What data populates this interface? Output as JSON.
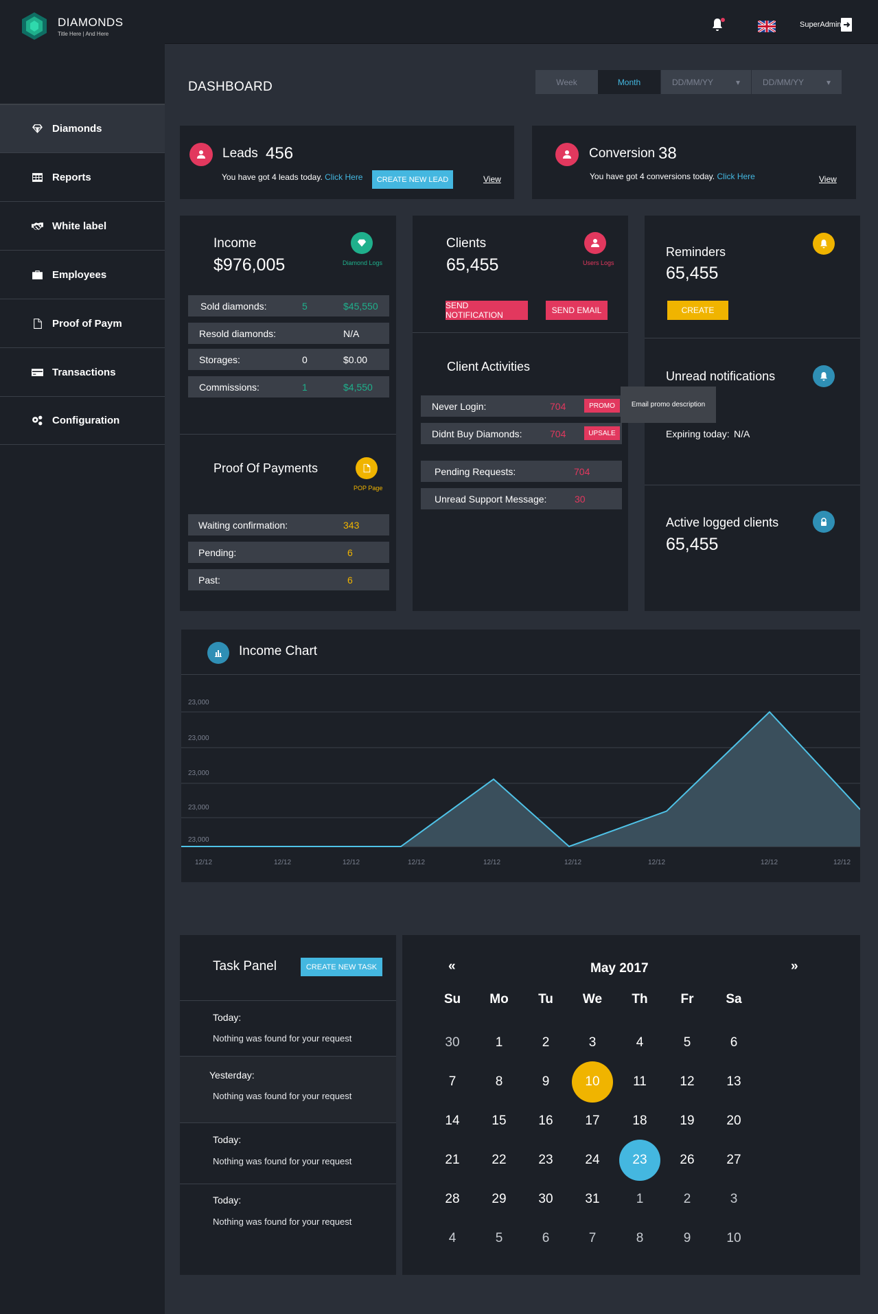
{
  "brand": {
    "name": "DIAMONDS",
    "tagline": "Title Here | And Here"
  },
  "sidebar": {
    "items": [
      {
        "label": "Diamonds",
        "icon": "diamond-icon"
      },
      {
        "label": "Reports",
        "icon": "table-icon"
      },
      {
        "label": "White label",
        "icon": "handshake-icon"
      },
      {
        "label": "Employees",
        "icon": "briefcase-icon"
      },
      {
        "label": "Proof of Paym",
        "icon": "document-icon"
      },
      {
        "label": "Transactions",
        "icon": "credit-card-icon"
      },
      {
        "label": "Configuration",
        "icon": "gears-icon"
      }
    ]
  },
  "topbar": {
    "user": "SuperAdmin"
  },
  "page": {
    "title": "DASHBOARD"
  },
  "filters": {
    "week": "Week",
    "month": "Month",
    "date_from": "DD/MM/YY",
    "date_to": "DD/MM/YY"
  },
  "leads": {
    "title": "Leads",
    "count": "456",
    "text": "You have got 4 leads today.",
    "link": "Click Here",
    "button": "CREATE NEW LEAD",
    "view": "View"
  },
  "conversion": {
    "title": "Conversion",
    "count": "38",
    "text": "You have got 4 conversions today.",
    "link": "Click Here",
    "view": "View"
  },
  "income": {
    "title": "Income",
    "amount": "$976,005",
    "link": "Diamond Logs",
    "rows": [
      {
        "label": "Sold diamonds:",
        "qty": "5",
        "value": "$45,550"
      },
      {
        "label": "Resold diamonds:",
        "qty": "",
        "value": "N/A"
      },
      {
        "label": "Storages:",
        "qty": "0",
        "value": "$0.00"
      },
      {
        "label": "Commissions:",
        "qty": "1",
        "value": "$4,550"
      }
    ]
  },
  "pop": {
    "title": "Proof Of Payments",
    "link": "POP Page",
    "rows": [
      {
        "label": "Waiting confirmation:",
        "value": "343"
      },
      {
        "label": "Pending:",
        "value": "6"
      },
      {
        "label": "Past:",
        "value": "6"
      }
    ]
  },
  "clients": {
    "title": "Clients",
    "count": "65,455",
    "link": "Users Logs",
    "btn_notify": "SEND NOTIFICATION",
    "btn_email": "SEND EMAIL"
  },
  "activities": {
    "title": "Client Activities",
    "rows": [
      {
        "label": "Never Login:",
        "value": "704",
        "tag": "PROMO"
      },
      {
        "label": "Didnt Buy Diamonds:",
        "value": "704",
        "tag": "UPSALE"
      },
      {
        "label": "Pending Requests:",
        "value": "704"
      },
      {
        "label": "Unread Support Message:",
        "value": "30"
      }
    ],
    "tooltip": "Email promo description"
  },
  "reminders": {
    "title": "Reminders",
    "count": "65,455",
    "button": "CREATE"
  },
  "unread": {
    "title": "Unread notifications",
    "expiring_label": "Expiring today:",
    "expiring_value": "N/A"
  },
  "active": {
    "title": "Active logged clients",
    "count": "65,455"
  },
  "chart_data": {
    "type": "area",
    "title": "Income Chart",
    "y_tick_labels": [
      "23,000",
      "23,000",
      "23,000",
      "23,000",
      "23,000"
    ],
    "x_tick_labels": [
      "12/12",
      "12/12",
      "12/12",
      "12/12",
      "12/12",
      "12/12",
      "12/12",
      "12/12",
      "12/12"
    ],
    "x": [
      0,
      1,
      2,
      3,
      4,
      5,
      6,
      7,
      8
    ],
    "values": [
      0,
      0,
      0,
      0,
      2.0,
      0,
      1.05,
      4.0,
      1.1
    ],
    "grid": true,
    "colors": {
      "line": "#4fc3e8",
      "fill": "#3a4f5c"
    }
  },
  "tasks": {
    "title": "Task Panel",
    "button": "CREATE NEW TASK",
    "items": [
      {
        "day": "Today:",
        "text": "Nothing was found for your request"
      },
      {
        "day": "Yesterday:",
        "text": "Nothing was found for your request"
      },
      {
        "day": "Today:",
        "text": "Nothing was found for your request"
      },
      {
        "day": "Today:",
        "text": "Nothing was found for your request"
      }
    ]
  },
  "calendar": {
    "month": "May 2017",
    "prev": "«",
    "next": "»",
    "dow": [
      "Su",
      "Mo",
      "Tu",
      "We",
      "Th",
      "Fr",
      "Sa"
    ],
    "days": [
      [
        "30",
        "1",
        "2",
        "3",
        "4",
        "5",
        "6"
      ],
      [
        "7",
        "8",
        "9",
        "10",
        "11",
        "12",
        "13"
      ],
      [
        "14",
        "15",
        "16",
        "17",
        "18",
        "19",
        "20"
      ],
      [
        "21",
        "22",
        "23",
        "24",
        "23",
        "26",
        "27"
      ],
      [
        "28",
        "29",
        "30",
        "31",
        "1",
        "2",
        "3"
      ],
      [
        "4",
        "5",
        "6",
        "7",
        "8",
        "9",
        "10"
      ]
    ],
    "highlight_yellow": "10",
    "highlight_blue": "23"
  },
  "colors": {
    "accent_blue": "#44b7e0",
    "accent_red": "#e2385e",
    "accent_yellow": "#f0b400",
    "accent_green": "#1fb08c",
    "panel": "#1c2027",
    "bg": "#2a2f38"
  }
}
